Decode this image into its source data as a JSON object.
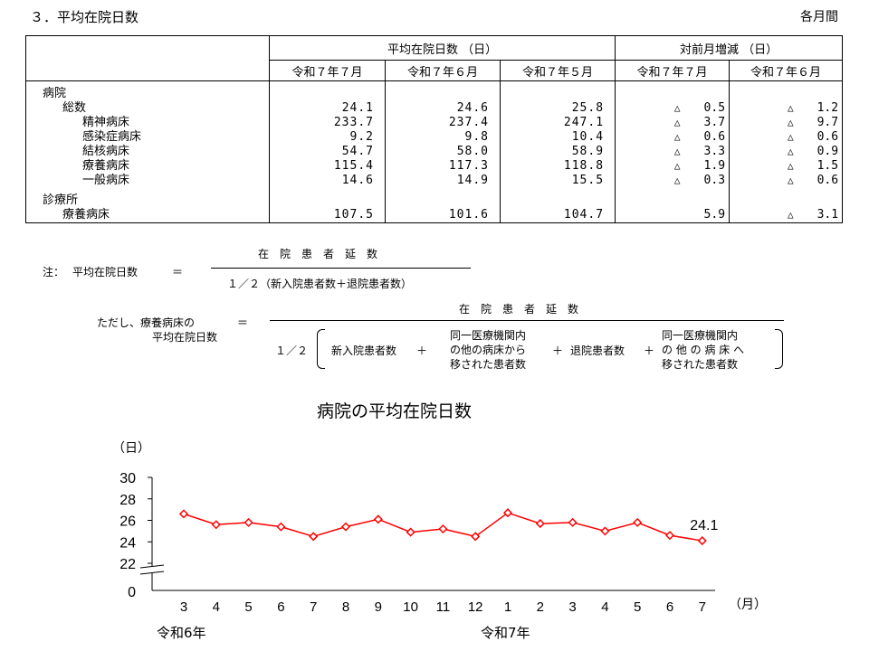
{
  "title": "３．平均在院日数",
  "unit_note": "各月間",
  "table": {
    "group_headers": [
      "平均在院日数 （日）",
      "対前月増減 （日）"
    ],
    "period_headers": [
      "令和７年７月",
      "令和７年６月",
      "令和７年５月",
      "令和７年７月",
      "令和７年６月"
    ],
    "rows": [
      {
        "label": "病院",
        "indent": 0,
        "values": [
          "",
          "",
          ""
        ],
        "changes": [
          null,
          null
        ]
      },
      {
        "label": "総数",
        "indent": 1,
        "values": [
          "24.1",
          "24.6",
          "25.8"
        ],
        "changes": [
          {
            "tri": "△",
            "val": "0.5"
          },
          {
            "tri": "△",
            "val": "1.2"
          }
        ]
      },
      {
        "label": "精神病床",
        "indent": 2,
        "values": [
          "233.7",
          "237.4",
          "247.1"
        ],
        "changes": [
          {
            "tri": "△",
            "val": "3.7"
          },
          {
            "tri": "△",
            "val": "9.7"
          }
        ]
      },
      {
        "label": "感染症病床",
        "indent": 2,
        "values": [
          "9.2",
          "9.8",
          "10.4"
        ],
        "changes": [
          {
            "tri": "△",
            "val": "0.6"
          },
          {
            "tri": "△",
            "val": "0.6"
          }
        ]
      },
      {
        "label": "結核病床",
        "indent": 2,
        "values": [
          "54.7",
          "58.0",
          "58.9"
        ],
        "changes": [
          {
            "tri": "△",
            "val": "3.3"
          },
          {
            "tri": "△",
            "val": "0.9"
          }
        ]
      },
      {
        "label": "療養病床",
        "indent": 2,
        "values": [
          "115.4",
          "117.3",
          "118.8"
        ],
        "changes": [
          {
            "tri": "△",
            "val": "1.9"
          },
          {
            "tri": "△",
            "val": "1.5"
          }
        ]
      },
      {
        "label": "一般病床",
        "indent": 2,
        "values": [
          "14.6",
          "14.9",
          "15.5"
        ],
        "changes": [
          {
            "tri": "△",
            "val": "0.3"
          },
          {
            "tri": "△",
            "val": "0.6"
          }
        ]
      },
      {
        "label": "診療所",
        "indent": 0,
        "values": [
          "",
          "",
          ""
        ],
        "changes": [
          null,
          null
        ]
      },
      {
        "label": "療養病床",
        "indent": 1,
        "values": [
          "107.5",
          "101.6",
          "104.7"
        ],
        "changes": [
          {
            "tri": "",
            "val": "5.9"
          },
          {
            "tri": "△",
            "val": "3.1"
          }
        ]
      }
    ]
  },
  "formula1": {
    "prefix": "注：",
    "lhs": "平均在院日数",
    "eq": "＝",
    "numerator": "在　院　患　者　延　数",
    "denominator": "１／２（新入院患者数＋退院患者数）"
  },
  "formula2": {
    "lhs_line1": "ただし、療養病床の",
    "lhs_line2": "平均在院日数",
    "eq": "＝",
    "numerator": "在　院　患　者　延　数",
    "half": "１／２",
    "term1": "新入院患者数",
    "plus": "＋",
    "term2_line1": "同一医療機関内",
    "term2_line2": "の他の病床から",
    "term2_line3": "移された患者数",
    "term3": "退院患者数",
    "term4_line1": "同一医療機関内",
    "term4_line2": "の 他 の 病 床 へ",
    "term4_line3": "移された患者数"
  },
  "chart_title": "病院の平均在院日数",
  "chart_data": {
    "type": "line",
    "title": "病院の平均在院日数",
    "ylabel": "（日）",
    "xlabel": "（月）",
    "y_ticks": [
      "30",
      "28",
      "26",
      "24",
      "22",
      "0"
    ],
    "ylim": [
      22,
      30
    ],
    "axis_break": true,
    "categories": [
      "3",
      "4",
      "5",
      "6",
      "7",
      "8",
      "9",
      "10",
      "11",
      "12",
      "1",
      "2",
      "3",
      "4",
      "5",
      "6",
      "7"
    ],
    "year_labels": [
      {
        "text": "令和6年",
        "at_index": 0
      },
      {
        "text": "令和7年",
        "at_index": 10
      }
    ],
    "series": [
      {
        "values": [
          26.6,
          25.6,
          25.8,
          25.4,
          24.5,
          25.4,
          26.1,
          24.9,
          25.2,
          24.5,
          26.7,
          25.7,
          25.8,
          25.0,
          25.8,
          24.6,
          24.1
        ],
        "color": "#ff0000"
      }
    ],
    "data_labels": [
      {
        "index": 16,
        "text": "24.1"
      }
    ],
    "grid": false
  }
}
